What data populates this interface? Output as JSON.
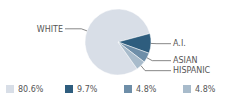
{
  "chart_data": {
    "type": "pie",
    "categories": [
      "WHITE",
      "A.I.",
      "ASIAN",
      "HISPANIC"
    ],
    "values": [
      80.6,
      9.7,
      4.8,
      4.8
    ],
    "value_labels": [
      "80.6%",
      "9.7%",
      "4.8%",
      "4.8%"
    ],
    "colors": [
      "#d8dee7",
      "#2e5d7e",
      "#6e8ea8",
      "#a8bbcb"
    ],
    "legend": "bottom"
  }
}
